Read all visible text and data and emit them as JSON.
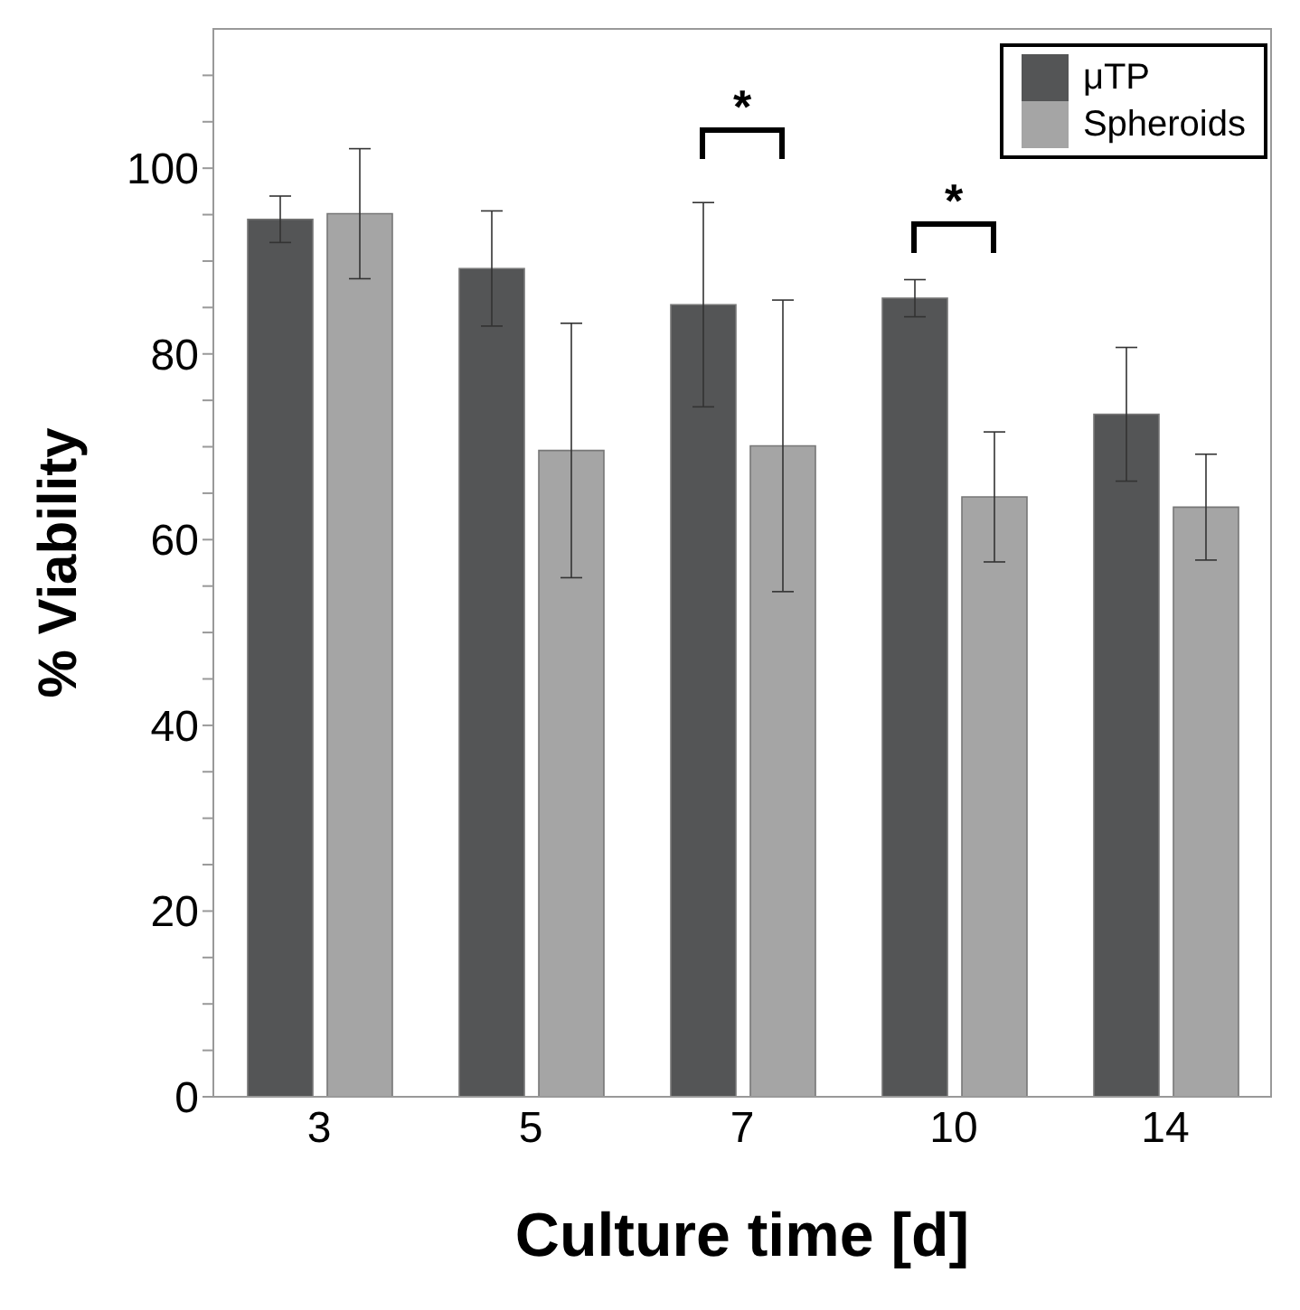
{
  "chart_data": {
    "type": "bar",
    "xlabel": "Culture time [d]",
    "ylabel": "% Viability",
    "categories": [
      "3",
      "5",
      "7",
      "10",
      "14"
    ],
    "series": [
      {
        "name": "μTP",
        "color": "#545556",
        "values": [
          94.5,
          89.2,
          85.3,
          86.0,
          73.5
        ],
        "errors": [
          2.5,
          6.2,
          11,
          2,
          7.2
        ]
      },
      {
        "name": "Spheroids",
        "color": "#a5a5a5",
        "values": [
          95.1,
          69.6,
          70.1,
          64.6,
          63.5
        ],
        "errors": [
          7,
          13.7,
          15.7,
          7,
          5.7
        ]
      }
    ],
    "ylim": [
      0,
      115
    ],
    "yticks": [
      0,
      {
        "value": 5,
        "label": null
      },
      {
        "value": 10,
        "label": null
      },
      {
        "value": 15,
        "label": null
      },
      20,
      {
        "value": 25,
        "label": null
      },
      {
        "value": 30,
        "label": null
      },
      {
        "value": 35,
        "label": null
      },
      40,
      {
        "value": 45,
        "label": null
      },
      {
        "value": 50,
        "label": null
      },
      {
        "value": 55,
        "label": null
      },
      60,
      {
        "value": 65,
        "label": null
      },
      {
        "value": 70,
        "label": null
      },
      {
        "value": 75,
        "label": null
      },
      80,
      {
        "value": 85,
        "label": null
      },
      {
        "value": 90,
        "label": null
      },
      {
        "value": 95,
        "label": null
      },
      100,
      {
        "value": 105,
        "label": null
      },
      {
        "value": 110,
        "label": null
      }
    ],
    "annotations": [
      "*",
      "*"
    ],
    "legend": "top right",
    "grid": false
  }
}
